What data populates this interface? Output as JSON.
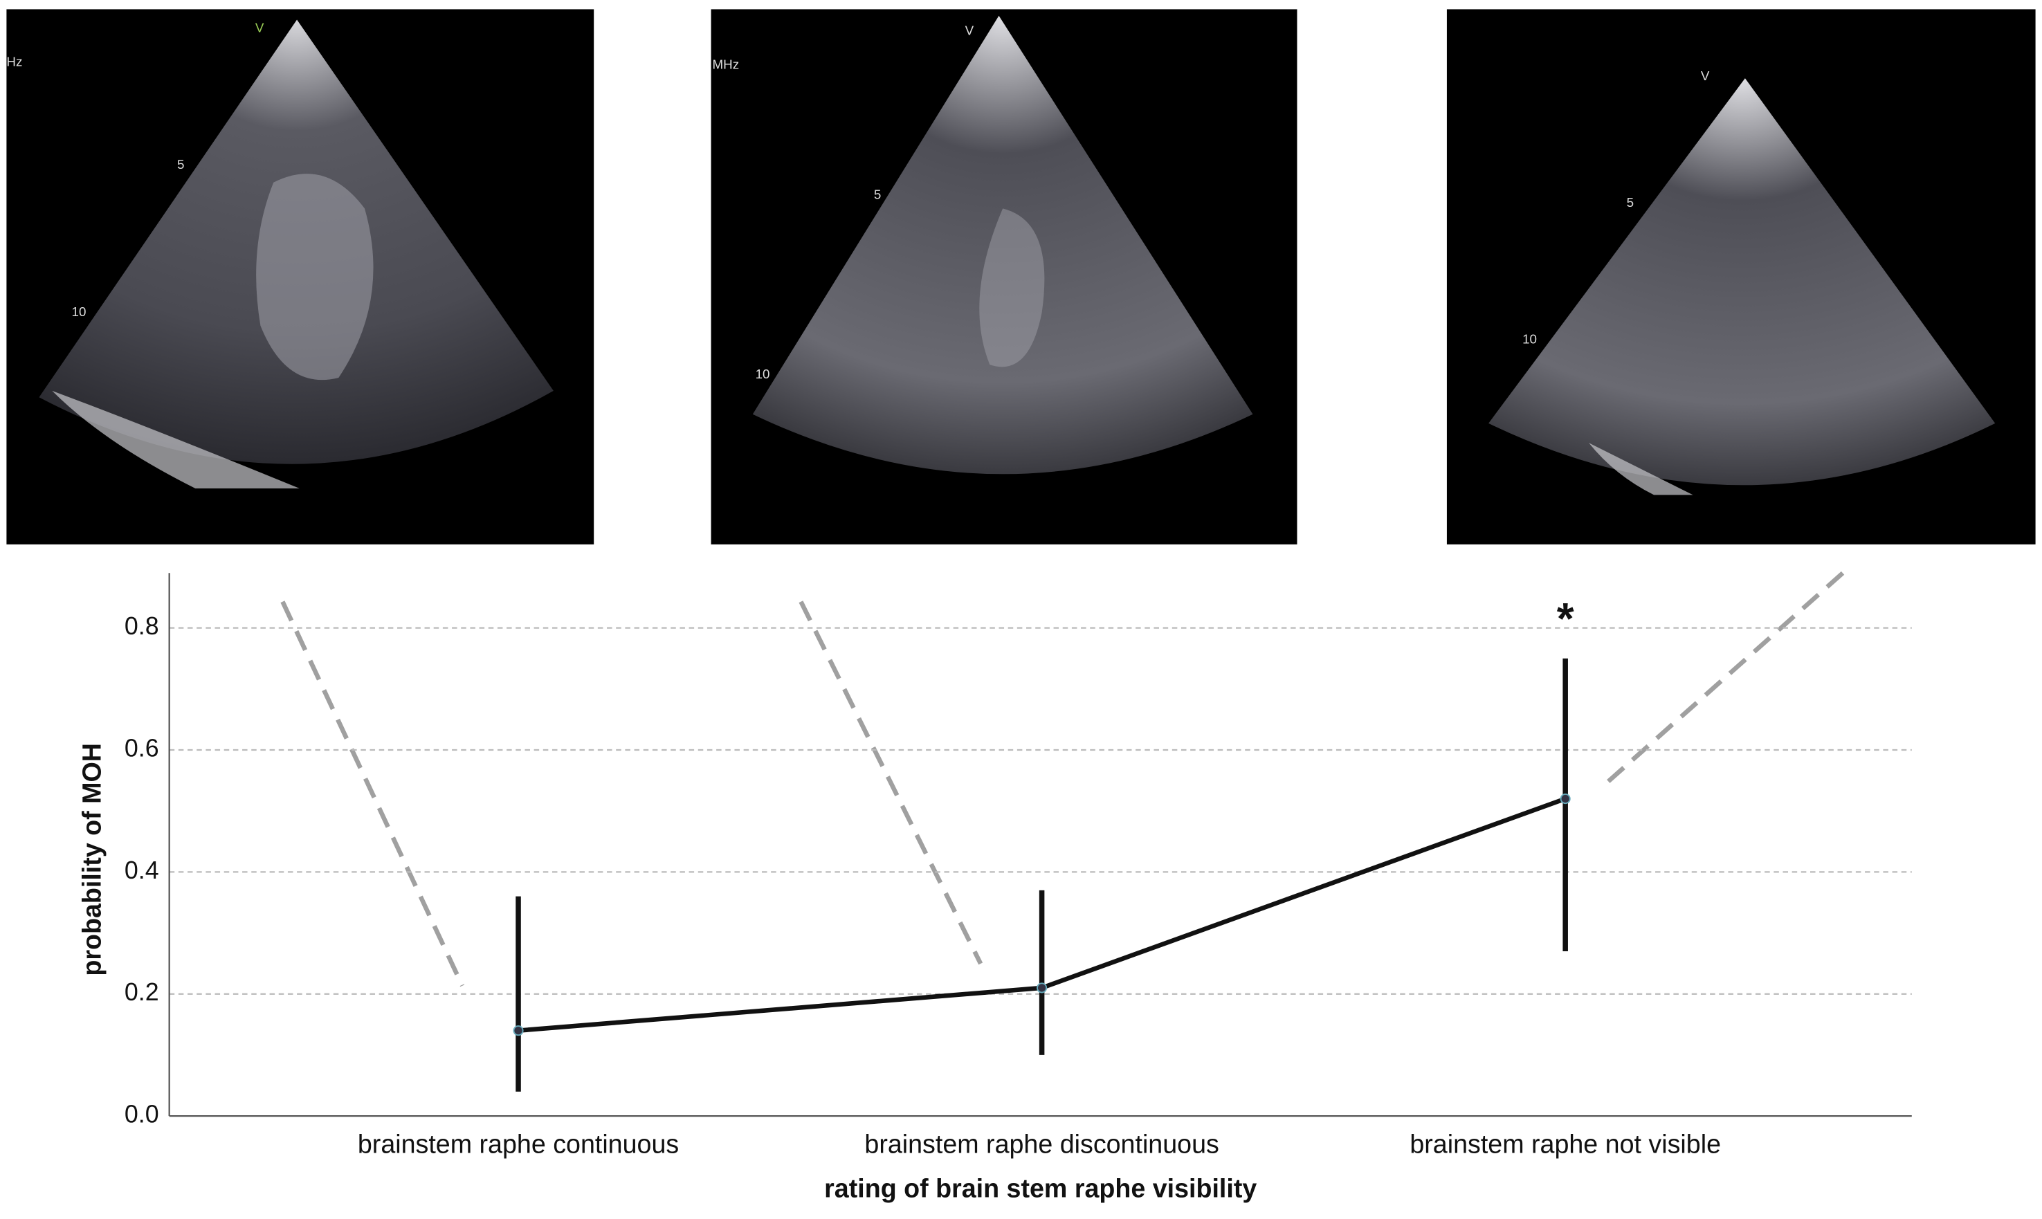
{
  "images": [
    {
      "labels": [
        "V",
        "5",
        "10",
        "Hz"
      ]
    },
    {
      "labels": [
        "V",
        "MHz",
        "5",
        "10"
      ]
    },
    {
      "labels": [
        "V",
        "5",
        "10"
      ]
    }
  ],
  "chart_data": {
    "type": "line",
    "x_label": "rating of brain stem raphe visibility",
    "y_label": "probability of MOH",
    "annotation": "*",
    "categories": [
      "brainstem raphe continuous",
      "brainstem raphe discontinuous",
      "brainstem raphe not visible"
    ],
    "series": [
      {
        "color": "#111111",
        "values": [
          0.14,
          0.21,
          0.52
        ],
        "error_low": [
          0.04,
          0.1,
          0.27
        ],
        "error_high": [
          0.36,
          0.37,
          0.75
        ]
      }
    ],
    "ylim": [
      0,
      0.89
    ],
    "yticks": [
      {
        "value": 0,
        "label": "0.0"
      },
      0.2,
      0.4,
      0.6,
      0.8
    ],
    "grid": true
  }
}
